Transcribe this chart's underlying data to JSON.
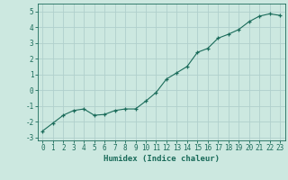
{
  "x": [
    0,
    1,
    2,
    3,
    4,
    5,
    6,
    7,
    8,
    9,
    10,
    11,
    12,
    13,
    14,
    15,
    16,
    17,
    18,
    19,
    20,
    21,
    22,
    23
  ],
  "y": [
    -2.6,
    -2.1,
    -1.6,
    -1.3,
    -1.2,
    -1.6,
    -1.55,
    -1.3,
    -1.2,
    -1.2,
    -0.7,
    -0.15,
    0.7,
    1.1,
    1.5,
    2.4,
    2.65,
    3.3,
    3.55,
    3.85,
    4.35,
    4.7,
    4.85,
    4.75
  ],
  "xlabel": "Humidex (Indice chaleur)",
  "ylim": [
    -3.2,
    5.5
  ],
  "xlim": [
    -0.5,
    23.5
  ],
  "yticks": [
    -3,
    -2,
    -1,
    0,
    1,
    2,
    3,
    4,
    5
  ],
  "xticks": [
    0,
    1,
    2,
    3,
    4,
    5,
    6,
    7,
    8,
    9,
    10,
    11,
    12,
    13,
    14,
    15,
    16,
    17,
    18,
    19,
    20,
    21,
    22,
    23
  ],
  "line_color": "#1a6b5a",
  "marker_color": "#1a6b5a",
  "bg_color": "#cce8e0",
  "grid_color": "#b0d0cc",
  "tick_label_color": "#1a6b5a",
  "xlabel_color": "#1a6b5a",
  "font_size": 5.5,
  "xlabel_fontsize": 6.5
}
